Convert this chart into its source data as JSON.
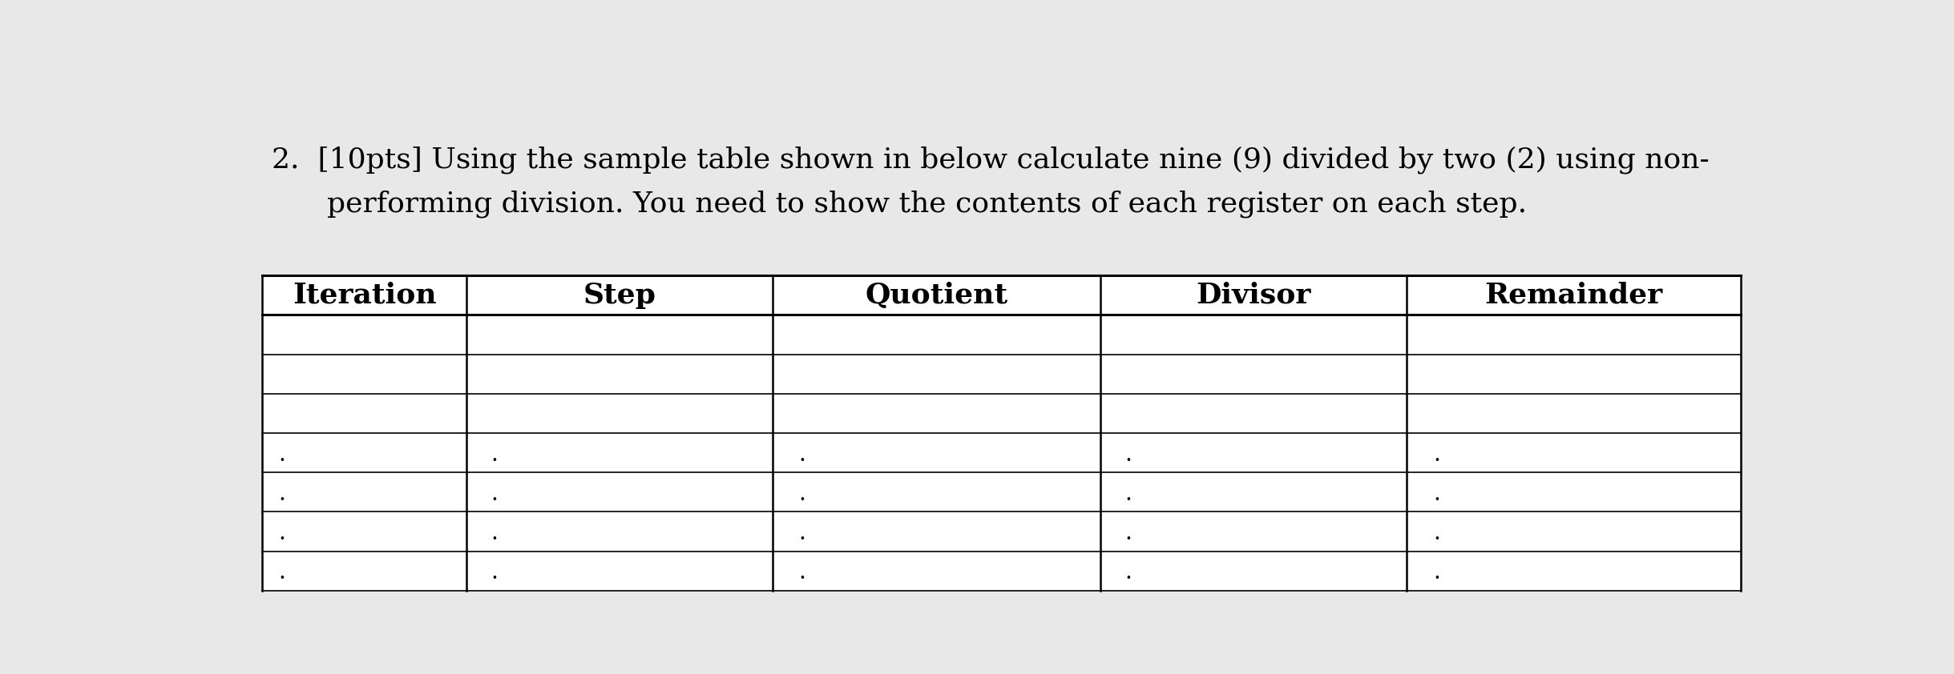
{
  "title_line1": "2.  [10pts] Using the sample table shown in below calculate nine (9) divided by two (2) using non-",
  "title_line2": "      performing division. You need to show the contents of each register on each step.",
  "columns": [
    "Iteration",
    "Step",
    "Quotient",
    "Divisor",
    "Remainder"
  ],
  "num_empty_rows": 3,
  "num_dot_rows": 4,
  "background_color": "#e8e8e8",
  "table_bg_color": "#ffffff",
  "text_color": "#000000",
  "title_fontsize": 26,
  "header_fontsize": 26,
  "dot_char": "·",
  "col_props": [
    0.138,
    0.207,
    0.222,
    0.207,
    0.226
  ]
}
